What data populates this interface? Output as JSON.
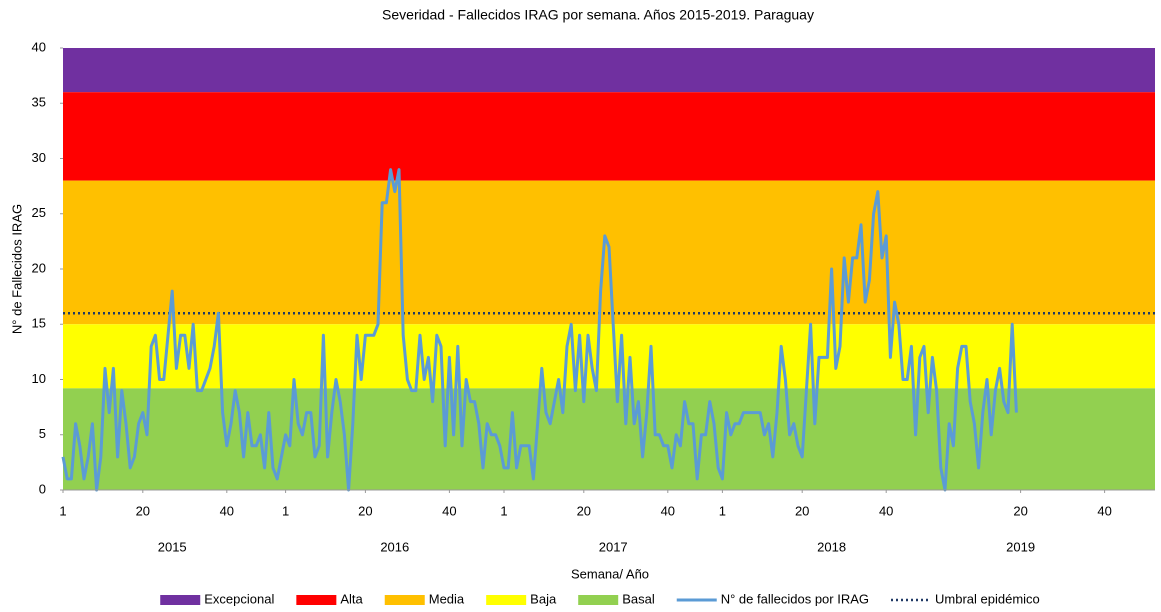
{
  "chart_data": {
    "type": "line",
    "title": "Severidad - Fallecidos IRAG por semana. Años 2015-2019. Paraguay",
    "y_label": "N° de Fallecidos IRAG",
    "x_label": "Semana/ Año",
    "ylim": [
      0,
      40
    ],
    "yticks": [
      0,
      5,
      10,
      15,
      20,
      25,
      30,
      35,
      40
    ],
    "xlim": [
      1,
      261
    ],
    "xticks": [
      {
        "value": 1,
        "label": "1"
      },
      {
        "value": 20,
        "label": "20"
      },
      {
        "value": 40,
        "label": "40"
      },
      {
        "value": 54,
        "label": "1"
      },
      {
        "value": 73,
        "label": "20"
      },
      {
        "value": 93,
        "label": "40"
      },
      {
        "value": 106,
        "label": "1"
      },
      {
        "value": 125,
        "label": "20"
      },
      {
        "value": 145,
        "label": "40"
      },
      {
        "value": 158,
        "label": "1"
      },
      {
        "value": 177,
        "label": "20"
      },
      {
        "value": 197,
        "label": "40"
      },
      {
        "value": 229,
        "label": "20"
      },
      {
        "value": 249,
        "label": "40"
      }
    ],
    "x_groups": [
      {
        "value": 27,
        "label": "2015"
      },
      {
        "value": 80,
        "label": "2016"
      },
      {
        "value": 132,
        "label": "2017"
      },
      {
        "value": 184,
        "label": "2018"
      },
      {
        "value": 229,
        "label": "2019"
      }
    ],
    "bands": [
      {
        "name": "Excepcional",
        "color": "#7030a0",
        "from": 36,
        "to": 40
      },
      {
        "name": "Alta",
        "color": "#ff0000",
        "from": 28,
        "to": 36
      },
      {
        "name": "Media",
        "color": "#ffc000",
        "from": 15,
        "to": 28
      },
      {
        "name": "Baja",
        "color": "#ffff00",
        "from": 9.2,
        "to": 15
      },
      {
        "name": "Basal",
        "color": "#92d050",
        "from": 0,
        "to": 9.2
      }
    ],
    "series": [
      {
        "name": "N° de fallecidos por IRAG",
        "color": "#5b9bd5",
        "x": [
          1,
          2,
          3,
          4,
          5,
          6,
          7,
          8,
          9,
          10,
          11,
          12,
          13,
          14,
          15,
          16,
          17,
          18,
          19,
          20,
          21,
          22,
          23,
          24,
          25,
          26,
          27,
          28,
          29,
          30,
          31,
          32,
          33,
          34,
          35,
          36,
          37,
          38,
          39,
          40,
          41,
          42,
          43,
          44,
          45,
          46,
          47,
          48,
          49,
          50,
          51,
          52,
          53,
          54,
          55,
          56,
          57,
          58,
          59,
          60,
          61,
          62,
          63,
          64,
          65,
          66,
          67,
          68,
          69,
          70,
          71,
          72,
          73,
          74,
          75,
          76,
          77,
          78,
          79,
          80,
          81,
          82,
          83,
          84,
          85,
          86,
          87,
          88,
          89,
          90,
          91,
          92,
          93,
          94,
          95,
          96,
          97,
          98,
          99,
          100,
          101,
          102,
          103,
          104,
          105,
          106,
          107,
          108,
          109,
          110,
          111,
          112,
          113,
          114,
          115,
          116,
          117,
          118,
          119,
          120,
          121,
          122,
          123,
          124,
          125,
          126,
          127,
          128,
          129,
          130,
          131,
          132,
          133,
          134,
          135,
          136,
          137,
          138,
          139,
          140,
          141,
          142,
          143,
          144,
          145,
          146,
          147,
          148,
          149,
          150,
          151,
          152,
          153,
          154,
          155,
          156,
          157,
          158,
          159,
          160,
          161,
          162,
          163,
          164,
          165,
          166,
          167,
          168,
          169,
          170,
          171,
          172,
          173,
          174,
          175,
          176,
          177,
          178,
          179,
          180,
          181,
          182,
          183,
          184,
          185,
          186,
          187,
          188,
          189,
          190,
          191,
          192,
          193,
          194,
          195,
          196,
          197,
          198,
          199,
          200,
          201,
          202,
          203,
          204,
          205,
          206,
          207,
          208,
          209,
          210,
          211,
          212,
          213,
          214,
          215,
          216,
          217,
          218,
          219,
          220,
          221,
          222,
          223,
          224,
          225,
          226,
          227,
          228
        ],
        "values": [
          3,
          1,
          1,
          6,
          4,
          1,
          3,
          6,
          0,
          3,
          11,
          7,
          11,
          3,
          9,
          6,
          2,
          3,
          6,
          7,
          5,
          13,
          14,
          10,
          10,
          14,
          18,
          11,
          14,
          14,
          11,
          15,
          9,
          9,
          10,
          11,
          13,
          16,
          7,
          4,
          6,
          9,
          7,
          3,
          7,
          4,
          4,
          5,
          2,
          7,
          2,
          1,
          3,
          5,
          4,
          10,
          6,
          5,
          7,
          7,
          3,
          4,
          14,
          3,
          7,
          10,
          8,
          5,
          0,
          6,
          14,
          10,
          14,
          14,
          14,
          15,
          26,
          26,
          29,
          27,
          29,
          14,
          10,
          9,
          9,
          14,
          10,
          12,
          8,
          14,
          13,
          4,
          12,
          5,
          13,
          4,
          10,
          8,
          8,
          6,
          2,
          6,
          5,
          5,
          4,
          2,
          2,
          7,
          2,
          4,
          4,
          4,
          1,
          6,
          11,
          7,
          6,
          8,
          10,
          7,
          13,
          15,
          9,
          14,
          8,
          14,
          11,
          9,
          18,
          23,
          22,
          15,
          8,
          14,
          6,
          12,
          6,
          8,
          3,
          7,
          13,
          5,
          5,
          4,
          4,
          2,
          5,
          4,
          8,
          6,
          6,
          1,
          5,
          5,
          8,
          6,
          2,
          1,
          7,
          5,
          6,
          6,
          7,
          7,
          7,
          7,
          7,
          5,
          6,
          3,
          7,
          13,
          10,
          5,
          6,
          4,
          3,
          9,
          15,
          6,
          12,
          12,
          12,
          20,
          11,
          13,
          21,
          17,
          21,
          21,
          24,
          17,
          19,
          25,
          27,
          21,
          23,
          12,
          17,
          15,
          10,
          10,
          13,
          5,
          12,
          13,
          7,
          12,
          9,
          2,
          0,
          6,
          4,
          11,
          13,
          13,
          8,
          6,
          2,
          7,
          10,
          5,
          9,
          11,
          8,
          7,
          15,
          7
        ]
      }
    ],
    "threshold": {
      "name": "Umbral epidémico",
      "value": 16,
      "color": "#1f3864"
    }
  }
}
